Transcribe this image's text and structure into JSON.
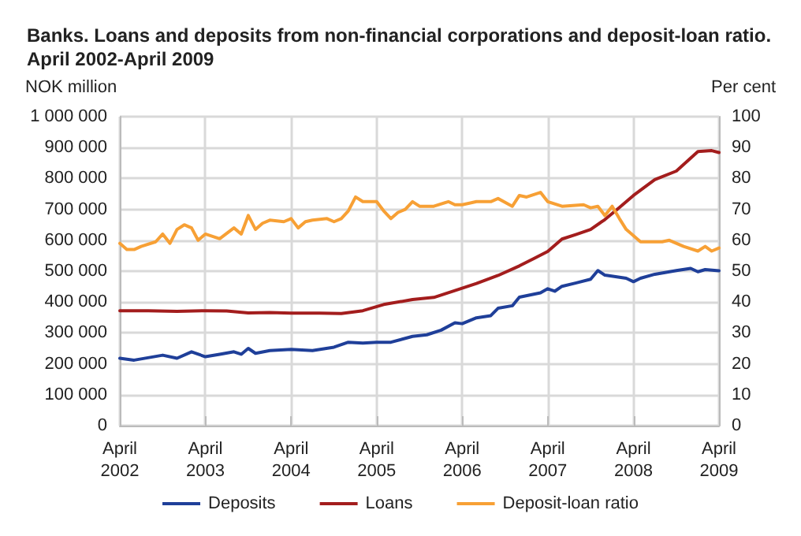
{
  "chart_data": {
    "type": "line",
    "title": "Banks. Loans and deposits from non-financial corporations and deposit-loan ratio. April 2002-April 2009",
    "ylabel": "NOK million",
    "y2label": "Per cent",
    "xlim": [
      "2002-04",
      "2009-04"
    ],
    "xticks": [
      {
        "value": "2002-04",
        "label": "April\n2002"
      },
      {
        "value": "2003-04",
        "label": "April\n2003"
      },
      {
        "value": "2004-04",
        "label": "April\n2004"
      },
      {
        "value": "2005-04",
        "label": "April\n2005"
      },
      {
        "value": "2006-04",
        "label": "April\n2006"
      },
      {
        "value": "2007-04",
        "label": "April\n2007"
      },
      {
        "value": "2008-04",
        "label": "April\n2008"
      },
      {
        "value": "2009-04",
        "label": "April\n2009"
      }
    ],
    "ylim": [
      0,
      1000000
    ],
    "yticks": [
      0,
      {
        "value": 100000,
        "label": "100 000"
      },
      {
        "value": 200000,
        "label": "200 000"
      },
      {
        "value": 300000,
        "label": "300 000"
      },
      {
        "value": 400000,
        "label": "400 000"
      },
      {
        "value": 500000,
        "label": "500 000"
      },
      {
        "value": 600000,
        "label": "600 000"
      },
      {
        "value": 700000,
        "label": "700 000"
      },
      {
        "value": 800000,
        "label": "800 000"
      },
      {
        "value": 900000,
        "label": "900 000"
      },
      {
        "value": 1000000,
        "label": "1 000 000"
      }
    ],
    "y2lim": [
      0,
      100
    ],
    "y2ticks": [
      0,
      10,
      20,
      30,
      40,
      50,
      60,
      70,
      80,
      90,
      100
    ],
    "grid": true,
    "legend": "bottom",
    "marker": "none",
    "line_style": "solid",
    "series": [
      {
        "name": "Deposits",
        "color": "#1f3f99",
        "x": [
          "2002-04",
          "2002-06",
          "2002-10",
          "2002-12",
          "2003-02",
          "2003-04",
          "2003-06",
          "2003-08",
          "2003-09",
          "2003-10",
          "2003-11",
          "2004-01",
          "2004-04",
          "2004-07",
          "2004-10",
          "2004-12",
          "2005-02",
          "2005-04",
          "2005-06",
          "2005-09",
          "2005-11",
          "2006-01",
          "2006-03",
          "2006-04",
          "2006-06",
          "2006-08",
          "2006-09",
          "2006-11",
          "2006-12",
          "2007-03",
          "2007-04",
          "2007-05",
          "2007-06",
          "2007-08",
          "2007-10",
          "2007-11",
          "2007-12",
          "2008-03",
          "2008-04",
          "2008-05",
          "2008-07",
          "2008-10",
          "2008-12",
          "2009-01",
          "2009-02",
          "2009-04"
        ],
        "values": [
          218000,
          212000,
          228000,
          218000,
          239000,
          223000,
          231000,
          239000,
          231000,
          250000,
          234000,
          243000,
          247000,
          243000,
          254000,
          270000,
          267000,
          270000,
          270000,
          289000,
          294000,
          309000,
          333000,
          330000,
          349000,
          356000,
          380000,
          388000,
          416000,
          430000,
          443000,
          435000,
          451000,
          462000,
          474000,
          502000,
          487000,
          477000,
          466000,
          477000,
          490000,
          502000,
          509000,
          498000,
          505000,
          501000
        ]
      },
      {
        "name": "Loans",
        "color": "#a31d1d",
        "x": [
          "2002-04",
          "2002-08",
          "2002-12",
          "2003-04",
          "2003-07",
          "2003-10",
          "2004-01",
          "2004-04",
          "2004-08",
          "2004-11",
          "2005-02",
          "2005-05",
          "2005-09",
          "2005-12",
          "2006-03",
          "2006-06",
          "2006-09",
          "2006-12",
          "2007-02",
          "2007-04",
          "2007-06",
          "2007-08",
          "2007-10",
          "2007-12",
          "2008-02",
          "2008-04",
          "2008-07",
          "2008-10",
          "2009-01",
          "2009-03",
          "2009-04"
        ],
        "values": [
          372000,
          372000,
          370000,
          372000,
          371000,
          365000,
          366000,
          364000,
          364000,
          363000,
          372000,
          392000,
          408000,
          415000,
          437000,
          460000,
          486000,
          517000,
          541000,
          564000,
          604000,
          619000,
          635000,
          667000,
          706000,
          745000,
          796000,
          824000,
          887000,
          890000,
          884000
        ]
      },
      {
        "name": "Deposit-loan ratio",
        "color": "#f7a035",
        "axis": "y2",
        "x": [
          "2002-04",
          "2002-05",
          "2002-06",
          "2002-07",
          "2002-09",
          "2002-10",
          "2002-11",
          "2002-12",
          "2003-01",
          "2003-02",
          "2003-03",
          "2003-04",
          "2003-06",
          "2003-08",
          "2003-09",
          "2003-10",
          "2003-11",
          "2003-12",
          "2004-01",
          "2004-03",
          "2004-04",
          "2004-05",
          "2004-06",
          "2004-07",
          "2004-09",
          "2004-10",
          "2004-11",
          "2004-12",
          "2005-01",
          "2005-02",
          "2005-04",
          "2005-05",
          "2005-06",
          "2005-07",
          "2005-08",
          "2005-09",
          "2005-10",
          "2005-12",
          "2006-02",
          "2006-03",
          "2006-04",
          "2006-06",
          "2006-08",
          "2006-09",
          "2006-11",
          "2006-12",
          "2007-01",
          "2007-03",
          "2007-04",
          "2007-06",
          "2007-09",
          "2007-10",
          "2007-11",
          "2007-12",
          "2008-01",
          "2008-02",
          "2008-03",
          "2008-05",
          "2008-08",
          "2008-09",
          "2008-11",
          "2009-01",
          "2009-02",
          "2009-03",
          "2009-04"
        ],
        "values": [
          59,
          57,
          57,
          58,
          59.5,
          62,
          59,
          63.5,
          65,
          64,
          60,
          62,
          60.5,
          64,
          62,
          68,
          63.5,
          65.5,
          66.5,
          66,
          67,
          64,
          66,
          66.5,
          67,
          66,
          67,
          69.5,
          74,
          72.5,
          72.5,
          69.5,
          67,
          69,
          70,
          72.5,
          71,
          71,
          72.5,
          71.5,
          71.5,
          72.5,
          72.5,
          73.5,
          71,
          74.5,
          74,
          75.5,
          72.5,
          71,
          71.5,
          70.5,
          71,
          68,
          71,
          67,
          63.5,
          59.5,
          59.5,
          60,
          58,
          56.5,
          58,
          56.5,
          57.5
        ]
      }
    ]
  }
}
